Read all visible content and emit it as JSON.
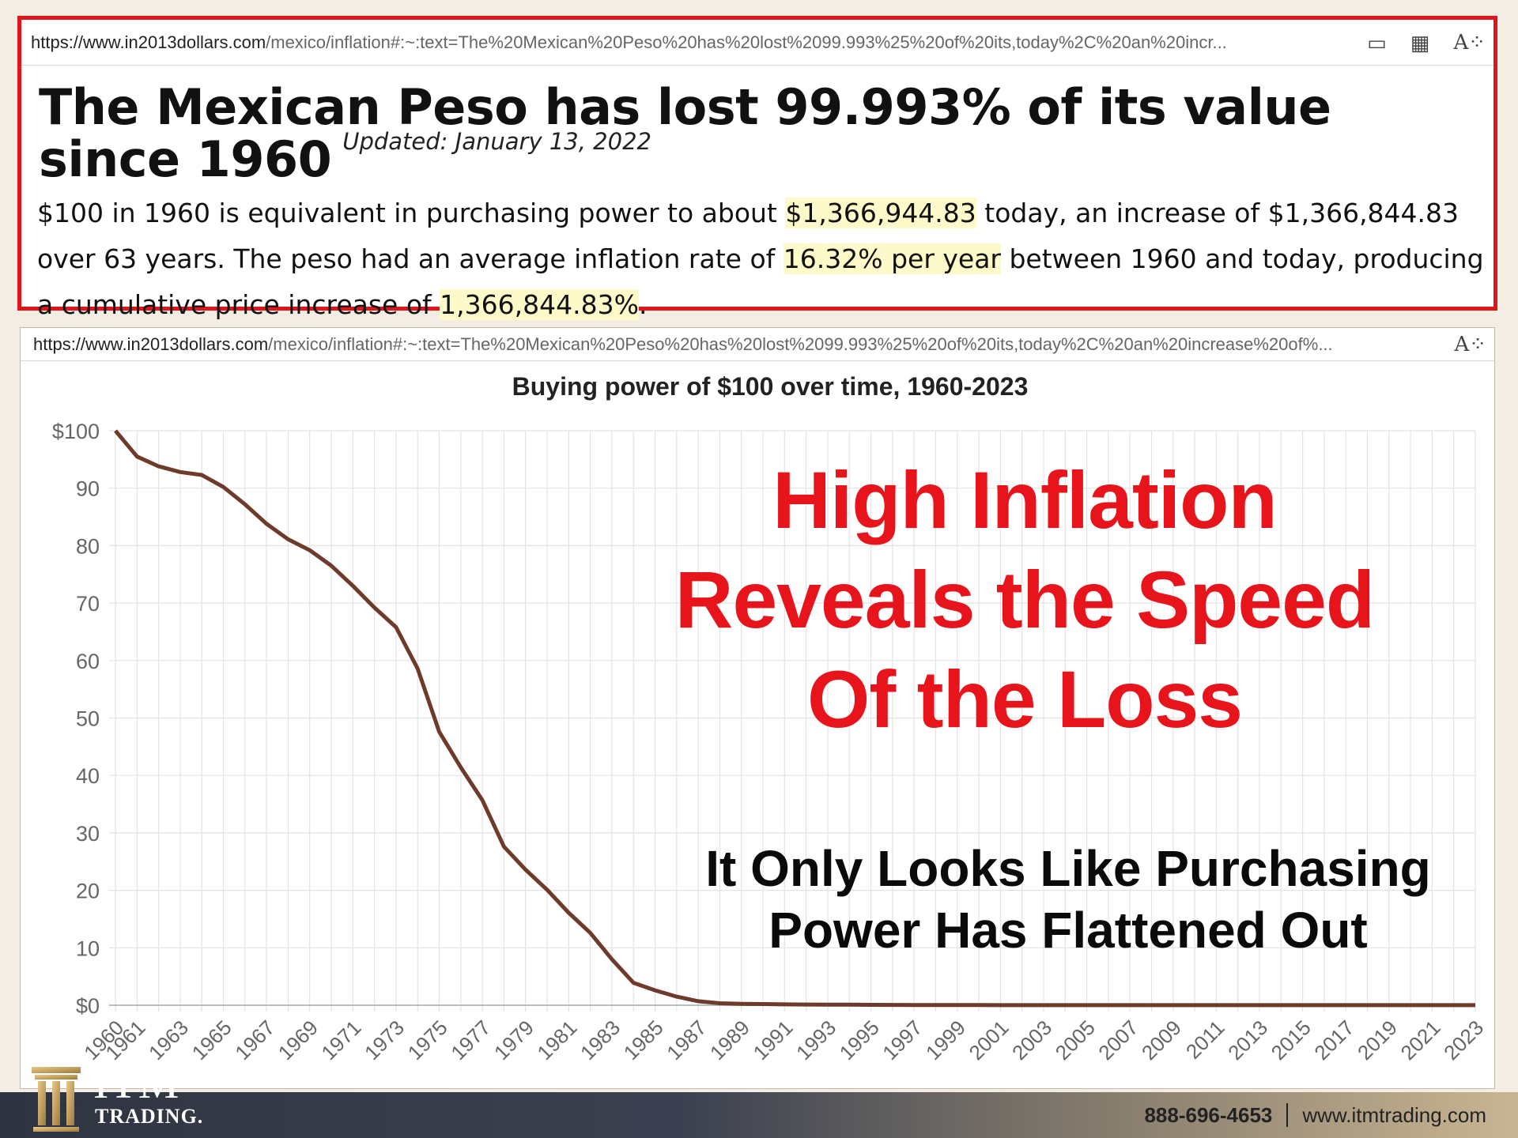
{
  "top_panel": {
    "url_host": "https://www.in2013dollars.com",
    "url_path": "/mexico/inflation#:~:text=The%20Mexican%20Peso%20has%20lost%2099.993%25%20of%20its,today%2C%20an%20incr...",
    "headline": "The Mexican Peso has lost 99.993% of its value since 1960",
    "updated": "Updated: January 13, 2022",
    "summary": {
      "p1": "$100 in 1960 is equivalent in purchasing power to about ",
      "hl1": "$1,366,944.83",
      "p2": " today, an increase of $1,366,844.83 over 63 years. The peso had an average inflation rate of ",
      "hl2": "16.32% per year",
      "p3": " between 1960 and today, producing a cumulative price increase of ",
      "hl3": "1,366,844.83%",
      "p4": "."
    },
    "icons": [
      "tablet-icon",
      "qr-icon",
      "read-aloud-icon"
    ]
  },
  "chart_panel": {
    "url_host": "https://www.in2013dollars.com",
    "url_path": "/mexico/inflation#:~:text=The%20Mexican%20Peso%20has%20lost%2099.993%25%20of%20its,today%2C%20an%20increase%20of%...",
    "overlay_heading": [
      "High Inflation",
      "Reveals the Speed",
      "Of the Loss"
    ],
    "overlay_sub": [
      "It Only Looks Like Purchasing",
      "Power Has Flattened Out"
    ]
  },
  "chart_data": {
    "type": "line",
    "title": "Buying power of $100 over time, 1960-2023",
    "xlabel": "",
    "ylabel": "",
    "ylim": [
      0,
      100
    ],
    "yticks": [
      "$0",
      "10",
      "20",
      "30",
      "40",
      "50",
      "60",
      "70",
      "80",
      "90",
      "$100"
    ],
    "xticks": [
      "1960",
      "1961",
      "1963",
      "1965",
      "1967",
      "1969",
      "1971",
      "1973",
      "1975",
      "1977",
      "1979",
      "1981",
      "1983",
      "1985",
      "1987",
      "1989",
      "1991",
      "1993",
      "1995",
      "1997",
      "1999",
      "2001",
      "2003",
      "2005",
      "2007",
      "2009",
      "2011",
      "2013",
      "2015",
      "2017",
      "2019",
      "2021",
      "2023"
    ],
    "grid": true,
    "line_color": "#6e3b2a",
    "series": [
      {
        "x": [
          1960,
          1961,
          1962,
          1963,
          1964,
          1965,
          1966,
          1967,
          1968,
          1969,
          1970,
          1971,
          1972,
          1973,
          1974,
          1975,
          1976,
          1977,
          1978,
          1979,
          1980,
          1981,
          1982,
          1983,
          1984,
          1985,
          1986,
          1987,
          1988,
          1989,
          1990,
          1991,
          1992,
          1993,
          1994,
          1995,
          1996,
          1997,
          1998,
          1999,
          2000,
          2001,
          2002,
          2003,
          2004,
          2005,
          2006,
          2007,
          2008,
          2009,
          2010,
          2011,
          2012,
          2013,
          2014,
          2015,
          2016,
          2017,
          2018,
          2019,
          2020,
          2021,
          2022,
          2023
        ],
        "values": [
          100,
          95.5,
          93.8,
          92.8,
          92.3,
          90.2,
          87.2,
          83.8,
          81.1,
          79.2,
          76.5,
          73,
          69.2,
          65.8,
          58.6,
          47.6,
          41.4,
          35.7,
          27.6,
          23.6,
          20.1,
          16.1,
          12.6,
          8,
          3.9,
          2.6,
          1.5,
          0.7,
          0.35,
          0.25,
          0.2,
          0.15,
          0.12,
          0.1,
          0.09,
          0.07,
          0.05,
          0.04,
          0.04,
          0.03,
          0.03,
          0.02,
          0.02,
          0.02,
          0.02,
          0.02,
          0.01,
          0.01,
          0.01,
          0.01,
          0.01,
          0.01,
          0.01,
          0.01,
          0.01,
          0.01,
          0.01,
          0.01,
          0.01,
          0.01,
          0.01,
          0.01,
          0.01,
          0.01
        ]
      }
    ]
  },
  "footer": {
    "logo_text": "ITM",
    "logo_sub": "TRADING.",
    "phone": "888-696-4653",
    "website": "www.itmtrading.com"
  }
}
